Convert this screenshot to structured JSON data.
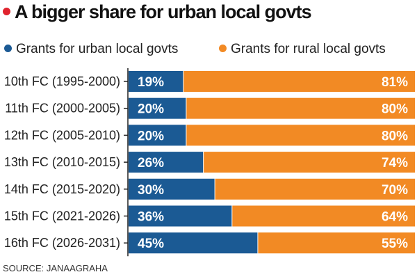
{
  "chart_data": {
    "type": "bar",
    "stacked": true,
    "orientation": "horizontal",
    "title": "A bigger share for urban local govts",
    "categories": [
      "10th FC (1995-2000)",
      "11th FC (2000-2005)",
      "12th FC (2005-2010)",
      "13th FC (2010-2015)",
      "14th FC (2015-2020)",
      "15th FC (2021-2026)",
      "16th FC (2026-2031)"
    ],
    "series": [
      {
        "name": "Grants for urban local govts",
        "color": "#1b5a94",
        "values": [
          19,
          20,
          20,
          26,
          30,
          36,
          45
        ]
      },
      {
        "name": "Grants for rural local govts",
        "color": "#f28a24",
        "values": [
          81,
          80,
          80,
          74,
          70,
          64,
          55
        ]
      }
    ],
    "xlim": [
      0,
      100
    ],
    "legend": "top",
    "source": "SOURCE: JANAAGRAHA"
  }
}
